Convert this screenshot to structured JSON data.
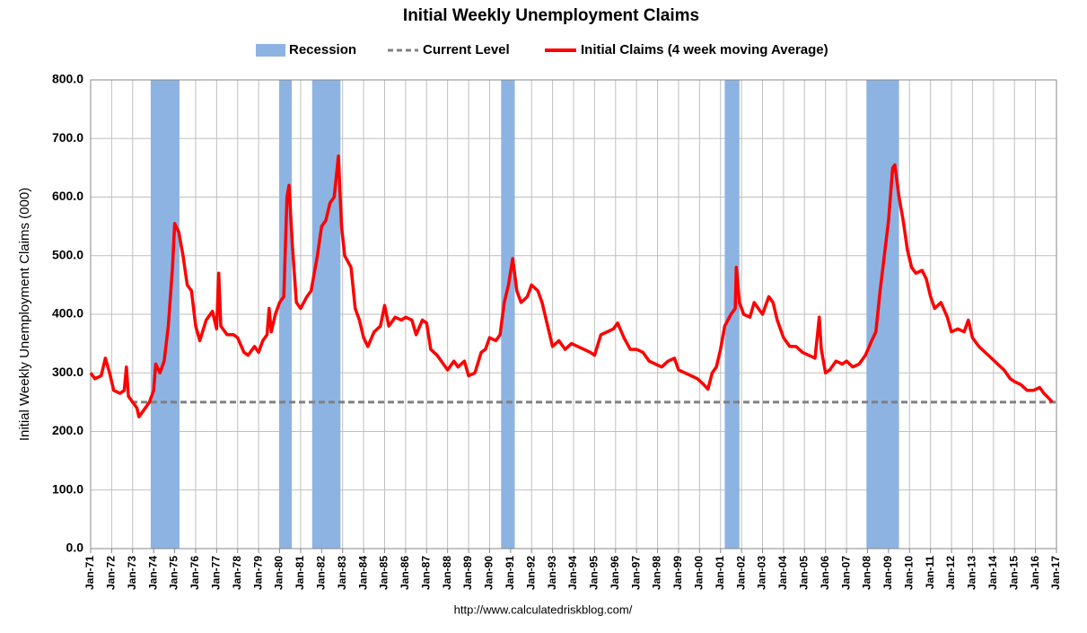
{
  "chart_data": {
    "type": "line",
    "title": "Initial Weekly Unemployment Claims",
    "y_label": "Initial Weekly Unemployment Claims (000)",
    "source": "http://www.calculatedriskblog.com/",
    "xlim": [
      1971,
      2017
    ],
    "xticks": [
      {
        "value": 1971,
        "label": "Jan-71"
      },
      {
        "value": 1972,
        "label": "Jan-72"
      },
      {
        "value": 1973,
        "label": "Jan-73"
      },
      {
        "value": 1974,
        "label": "Jan-74"
      },
      {
        "value": 1975,
        "label": "Jan-75"
      },
      {
        "value": 1976,
        "label": "Jan-76"
      },
      {
        "value": 1977,
        "label": "Jan-77"
      },
      {
        "value": 1978,
        "label": "Jan-78"
      },
      {
        "value": 1979,
        "label": "Jan-79"
      },
      {
        "value": 1980,
        "label": "Jan-80"
      },
      {
        "value": 1981,
        "label": "Jan-81"
      },
      {
        "value": 1982,
        "label": "Jan-82"
      },
      {
        "value": 1983,
        "label": "Jan-83"
      },
      {
        "value": 1984,
        "label": "Jan-84"
      },
      {
        "value": 1985,
        "label": "Jan-85"
      },
      {
        "value": 1986,
        "label": "Jan-86"
      },
      {
        "value": 1987,
        "label": "Jan-87"
      },
      {
        "value": 1988,
        "label": "Jan-88"
      },
      {
        "value": 1989,
        "label": "Jan-89"
      },
      {
        "value": 1990,
        "label": "Jan-90"
      },
      {
        "value": 1991,
        "label": "Jan-91"
      },
      {
        "value": 1992,
        "label": "Jan-92"
      },
      {
        "value": 1993,
        "label": "Jan-93"
      },
      {
        "value": 1994,
        "label": "Jan-94"
      },
      {
        "value": 1995,
        "label": "Jan-95"
      },
      {
        "value": 1996,
        "label": "Jan-96"
      },
      {
        "value": 1997,
        "label": "Jan-97"
      },
      {
        "value": 1998,
        "label": "Jan-98"
      },
      {
        "value": 1999,
        "label": "Jan-99"
      },
      {
        "value": 2000,
        "label": "Jan-00"
      },
      {
        "value": 2001,
        "label": "Jan-01"
      },
      {
        "value": 2002,
        "label": "Jan-02"
      },
      {
        "value": 2003,
        "label": "Jan-03"
      },
      {
        "value": 2004,
        "label": "Jan-04"
      },
      {
        "value": 2005,
        "label": "Jan-05"
      },
      {
        "value": 2006,
        "label": "Jan-06"
      },
      {
        "value": 2007,
        "label": "Jan-07"
      },
      {
        "value": 2008,
        "label": "Jan-08"
      },
      {
        "value": 2009,
        "label": "Jan-09"
      },
      {
        "value": 2010,
        "label": "Jan-10"
      },
      {
        "value": 2011,
        "label": "Jan-11"
      },
      {
        "value": 2012,
        "label": "Jan-12"
      },
      {
        "value": 2013,
        "label": "Jan-13"
      },
      {
        "value": 2014,
        "label": "Jan-14"
      },
      {
        "value": 2015,
        "label": "Jan-15"
      },
      {
        "value": 2016,
        "label": "Jan-16"
      },
      {
        "value": 2017,
        "label": "Jan-17"
      }
    ],
    "ylim": [
      0,
      800
    ],
    "yticks": [
      {
        "value": 0,
        "label": "0.0"
      },
      {
        "value": 100,
        "label": "100.0"
      },
      {
        "value": 200,
        "label": "200.0"
      },
      {
        "value": 300,
        "label": "300.0"
      },
      {
        "value": 400,
        "label": "400.0"
      },
      {
        "value": 500,
        "label": "500.0"
      },
      {
        "value": 600,
        "label": "600.0"
      },
      {
        "value": 700,
        "label": "700.0"
      },
      {
        "value": 800,
        "label": "800.0"
      }
    ],
    "grid": true,
    "recessions": {
      "name": "Recession",
      "color": "#8db3e2",
      "bands": [
        {
          "start": 1973.86,
          "end": 1975.23
        },
        {
          "start": 1979.98,
          "end": 1980.58
        },
        {
          "start": 1981.55,
          "end": 1982.9
        },
        {
          "start": 1990.55,
          "end": 1991.2
        },
        {
          "start": 2001.2,
          "end": 2001.9
        },
        {
          "start": 2007.95,
          "end": 2009.5
        }
      ]
    },
    "current_level": {
      "name": "Current Level",
      "value": 250,
      "color": "#808080"
    },
    "series": [
      {
        "name": "Initial Claims (4 week moving Average)",
        "color": "#ff0000",
        "x": [
          1971.0,
          1971.2,
          1971.5,
          1971.7,
          1971.9,
          1972.1,
          1972.4,
          1972.6,
          1972.7,
          1972.8,
          1973.0,
          1973.2,
          1973.3,
          1973.5,
          1973.8,
          1974.0,
          1974.1,
          1974.3,
          1974.5,
          1974.7,
          1974.9,
          1975.0,
          1975.2,
          1975.4,
          1975.6,
          1975.8,
          1976.0,
          1976.2,
          1976.5,
          1976.8,
          1977.0,
          1977.1,
          1977.2,
          1977.5,
          1977.8,
          1978.0,
          1978.3,
          1978.5,
          1978.8,
          1979.0,
          1979.2,
          1979.4,
          1979.5,
          1979.6,
          1979.8,
          1980.0,
          1980.2,
          1980.35,
          1980.45,
          1980.6,
          1980.8,
          1981.0,
          1981.3,
          1981.5,
          1981.8,
          1982.0,
          1982.2,
          1982.4,
          1982.6,
          1982.8,
          1982.95,
          1983.1,
          1983.4,
          1983.6,
          1983.8,
          1984.0,
          1984.2,
          1984.5,
          1984.8,
          1985.0,
          1985.2,
          1985.5,
          1985.8,
          1986.0,
          1986.3,
          1986.5,
          1986.8,
          1987.0,
          1987.2,
          1987.5,
          1987.8,
          1988.0,
          1988.3,
          1988.5,
          1988.8,
          1989.0,
          1989.3,
          1989.6,
          1989.8,
          1990.0,
          1990.3,
          1990.5,
          1990.7,
          1990.9,
          1991.1,
          1991.3,
          1991.5,
          1991.8,
          1992.0,
          1992.3,
          1992.5,
          1992.8,
          1993.0,
          1993.3,
          1993.6,
          1993.9,
          1994.2,
          1994.5,
          1994.8,
          1995.0,
          1995.3,
          1995.6,
          1995.9,
          1996.1,
          1996.4,
          1996.7,
          1997.0,
          1997.3,
          1997.6,
          1997.9,
          1998.2,
          1998.5,
          1998.8,
          1999.0,
          1999.3,
          1999.6,
          1999.9,
          2000.2,
          2000.4,
          2000.6,
          2000.8,
          2001.0,
          2001.2,
          2001.5,
          2001.7,
          2001.75,
          2001.9,
          2002.1,
          2002.4,
          2002.6,
          2002.8,
          2003.0,
          2003.3,
          2003.5,
          2003.7,
          2004.0,
          2004.3,
          2004.6,
          2004.9,
          2005.2,
          2005.5,
          2005.7,
          2005.8,
          2006.0,
          2006.2,
          2006.5,
          2006.8,
          2007.0,
          2007.3,
          2007.6,
          2007.9,
          2008.2,
          2008.4,
          2008.6,
          2008.8,
          2009.0,
          2009.2,
          2009.3,
          2009.5,
          2009.7,
          2009.9,
          2010.1,
          2010.3,
          2010.6,
          2010.8,
          2011.0,
          2011.2,
          2011.5,
          2011.8,
          2012.0,
          2012.3,
          2012.6,
          2012.8,
          2013.0,
          2013.3,
          2013.6,
          2013.9,
          2014.2,
          2014.5,
          2014.8,
          2015.0,
          2015.3,
          2015.6,
          2015.9,
          2016.2,
          2016.4,
          2016.6,
          2016.8
        ],
        "values": [
          300,
          290,
          295,
          325,
          300,
          270,
          265,
          270,
          310,
          260,
          250,
          240,
          225,
          235,
          250,
          270,
          315,
          300,
          320,
          380,
          480,
          555,
          540,
          500,
          450,
          440,
          380,
          355,
          390,
          405,
          375,
          470,
          380,
          365,
          365,
          360,
          335,
          330,
          345,
          335,
          355,
          365,
          410,
          370,
          400,
          420,
          430,
          600,
          620,
          520,
          420,
          410,
          430,
          440,
          500,
          550,
          560,
          590,
          600,
          670,
          550,
          500,
          480,
          410,
          390,
          360,
          345,
          370,
          380,
          415,
          380,
          395,
          390,
          395,
          390,
          365,
          390,
          385,
          340,
          330,
          315,
          305,
          320,
          310,
          320,
          295,
          300,
          335,
          340,
          360,
          355,
          365,
          420,
          450,
          495,
          440,
          420,
          430,
          450,
          440,
          420,
          375,
          345,
          355,
          340,
          350,
          345,
          340,
          335,
          330,
          365,
          370,
          375,
          385,
          360,
          340,
          340,
          335,
          320,
          315,
          310,
          320,
          325,
          305,
          300,
          295,
          290,
          280,
          272,
          300,
          310,
          340,
          380,
          400,
          410,
          480,
          420,
          400,
          395,
          420,
          410,
          400,
          430,
          420,
          390,
          360,
          345,
          345,
          335,
          330,
          325,
          395,
          340,
          300,
          305,
          320,
          315,
          320,
          310,
          315,
          330,
          355,
          370,
          440,
          500,
          560,
          650,
          655,
          600,
          560,
          510,
          480,
          470,
          475,
          460,
          430,
          410,
          420,
          395,
          370,
          375,
          370,
          390,
          360,
          345,
          335,
          325,
          315,
          305,
          290,
          285,
          280,
          270,
          270,
          275,
          265,
          258,
          250
        ]
      }
    ]
  }
}
